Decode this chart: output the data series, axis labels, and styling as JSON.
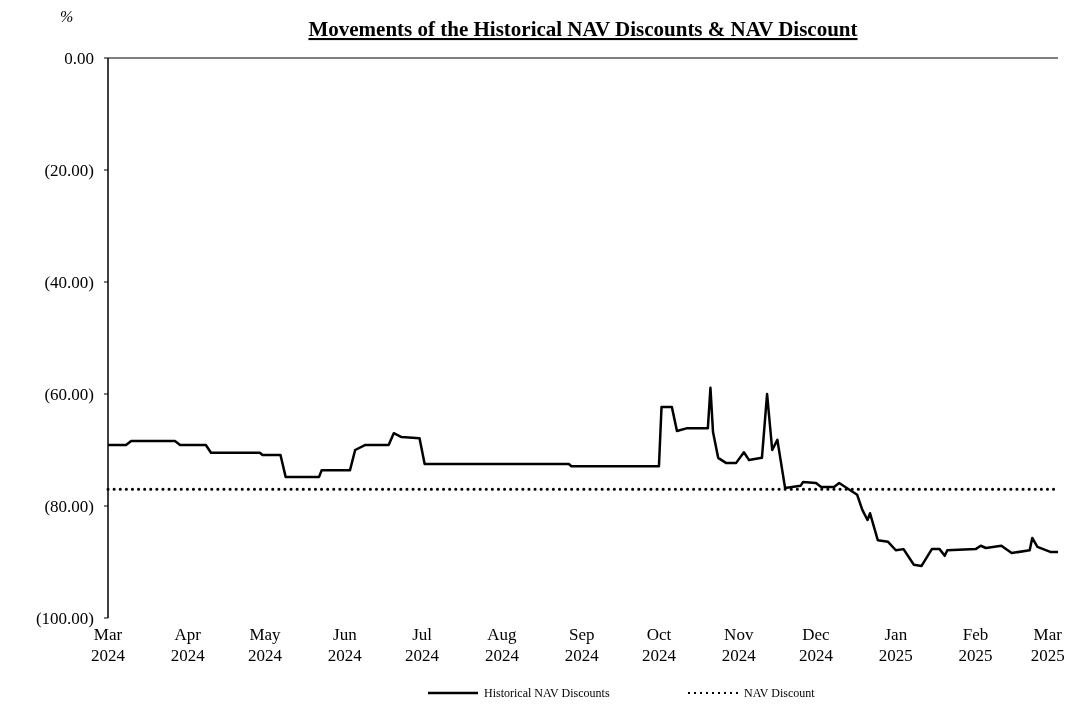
{
  "chart_data": {
    "type": "line",
    "title": "Movements of the Historical NAV Discounts & NAV Discount",
    "ylabel": "%",
    "xlim": [
      "2024-03-01",
      "2025-03-05"
    ],
    "xticks": [
      {
        "value": "2024-03-01",
        "label": "Mar 2024"
      },
      {
        "value": "2024-04-01",
        "label": "Apr 2024"
      },
      {
        "value": "2024-05-01",
        "label": "May 2024"
      },
      {
        "value": "2024-06-01",
        "label": "Jun 2024"
      },
      {
        "value": "2024-07-01",
        "label": "Jul 2024"
      },
      {
        "value": "2024-08-01",
        "label": "Aug 2024"
      },
      {
        "value": "2024-09-01",
        "label": "Sep 2024"
      },
      {
        "value": "2024-10-01",
        "label": "Oct 2024"
      },
      {
        "value": "2024-11-01",
        "label": "Nov 2024"
      },
      {
        "value": "2024-12-01",
        "label": "Dec 2024"
      },
      {
        "value": "2025-01-01",
        "label": "Jan 2025"
      },
      {
        "value": "2025-02-01",
        "label": "Feb 2025"
      },
      {
        "value": "2025-03-01",
        "label": "Mar 2025"
      }
    ],
    "ylim": [
      -100,
      0
    ],
    "yticks": [
      {
        "value": 0,
        "label": "0.00"
      },
      {
        "value": -20,
        "label": "(20.00)"
      },
      {
        "value": -40,
        "label": "(40.00)"
      },
      {
        "value": -60,
        "label": "(60.00)"
      },
      {
        "value": -80,
        "label": "(80.00)"
      },
      {
        "value": -100,
        "label": "(100.00)"
      }
    ],
    "grid": false,
    "legend": "bottom",
    "marker": "none",
    "series": [
      {
        "name": "Historical NAV Discounts",
        "color": "#000000",
        "line_style": "solid",
        "x": [
          "2024-03-01",
          "2024-03-08",
          "2024-03-10",
          "2024-03-27",
          "2024-03-29",
          "2024-04-08",
          "2024-04-10",
          "2024-04-29",
          "2024-04-30",
          "2024-05-07",
          "2024-05-09",
          "2024-05-22",
          "2024-05-23",
          "2024-06-03",
          "2024-06-05",
          "2024-06-09",
          "2024-06-18",
          "2024-06-20",
          "2024-06-23",
          "2024-06-30",
          "2024-07-02",
          "2024-08-27",
          "2024-08-28",
          "2024-10-01",
          "2024-10-02",
          "2024-10-06",
          "2024-10-08",
          "2024-10-12",
          "2024-10-20",
          "2024-10-21",
          "2024-10-22",
          "2024-10-24",
          "2024-10-27",
          "2024-10-31",
          "2024-11-03",
          "2024-11-05",
          "2024-11-10",
          "2024-11-12",
          "2024-11-14",
          "2024-11-16",
          "2024-11-19",
          "2024-11-25",
          "2024-11-26",
          "2024-12-01",
          "2024-12-03",
          "2024-12-08",
          "2024-12-10",
          "2024-12-14",
          "2024-12-17",
          "2024-12-19",
          "2024-12-21",
          "2024-12-22",
          "2024-12-25",
          "2024-12-29",
          "2025-01-01",
          "2025-01-04",
          "2025-01-08",
          "2025-01-11",
          "2025-01-15",
          "2025-01-18",
          "2025-01-20",
          "2025-01-21",
          "2025-02-01",
          "2025-02-03",
          "2025-02-05",
          "2025-02-11",
          "2025-02-15",
          "2025-02-22",
          "2025-02-23",
          "2025-02-25",
          "2025-03-02",
          "2025-03-05"
        ],
        "values": [
          -69.1,
          -69.1,
          -68.4,
          -68.4,
          -69.1,
          -69.1,
          -70.5,
          -70.5,
          -70.9,
          -70.9,
          -74.8,
          -74.8,
          -73.6,
          -73.6,
          -70.0,
          -69.1,
          -69.1,
          -67.0,
          -67.7,
          -67.9,
          -72.5,
          -72.5,
          -72.9,
          -72.9,
          -62.3,
          -62.3,
          -66.6,
          -66.1,
          -66.1,
          -58.9,
          -66.8,
          -71.4,
          -72.3,
          -72.3,
          -70.4,
          -71.8,
          -71.4,
          -60.0,
          -70.0,
          -68.2,
          -76.8,
          -76.4,
          -75.7,
          -75.9,
          -76.6,
          -76.6,
          -75.9,
          -77.1,
          -78.0,
          -80.7,
          -82.5,
          -81.3,
          -86.1,
          -86.4,
          -87.9,
          -87.7,
          -90.5,
          -90.7,
          -87.7,
          -87.7,
          -88.9,
          -87.9,
          -87.7,
          -87.1,
          -87.5,
          -87.1,
          -88.4,
          -87.9,
          -85.7,
          -87.3,
          -88.2,
          -88.2
        ]
      },
      {
        "name": "NAV Discount",
        "color": "#000000",
        "line_style": "dotted",
        "x": [
          "2024-03-01",
          "2025-03-05"
        ],
        "values": [
          -77,
          -77
        ]
      }
    ]
  }
}
